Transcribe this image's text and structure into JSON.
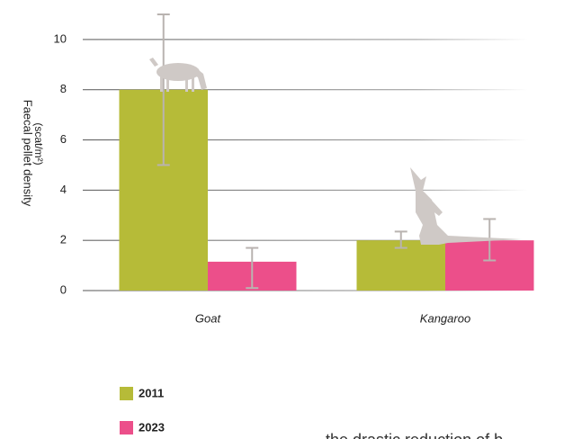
{
  "chart_data": {
    "type": "bar",
    "y_label": [
      "Faecal pellet density",
      "(scat/m²)"
    ],
    "categories": [
      "Goat",
      "Kangaroo"
    ],
    "series": [
      {
        "name": "2011",
        "color": "#b6bb38",
        "values": [
          8,
          2
        ],
        "lower": [
          5,
          1.7
        ],
        "upper": [
          11,
          2.35
        ]
      },
      {
        "name": "2023",
        "color": "#ec4f8a",
        "values": [
          1.15,
          2
        ],
        "lower": [
          0.1,
          1.2
        ],
        "upper": [
          1.7,
          2.85
        ]
      }
    ],
    "ylim": [
      0,
      11
    ],
    "yticks": [
      0,
      2,
      4,
      6,
      8,
      10
    ],
    "grid": true,
    "legend": "bottom-left"
  },
  "caption": "the drastic reduction of b"
}
